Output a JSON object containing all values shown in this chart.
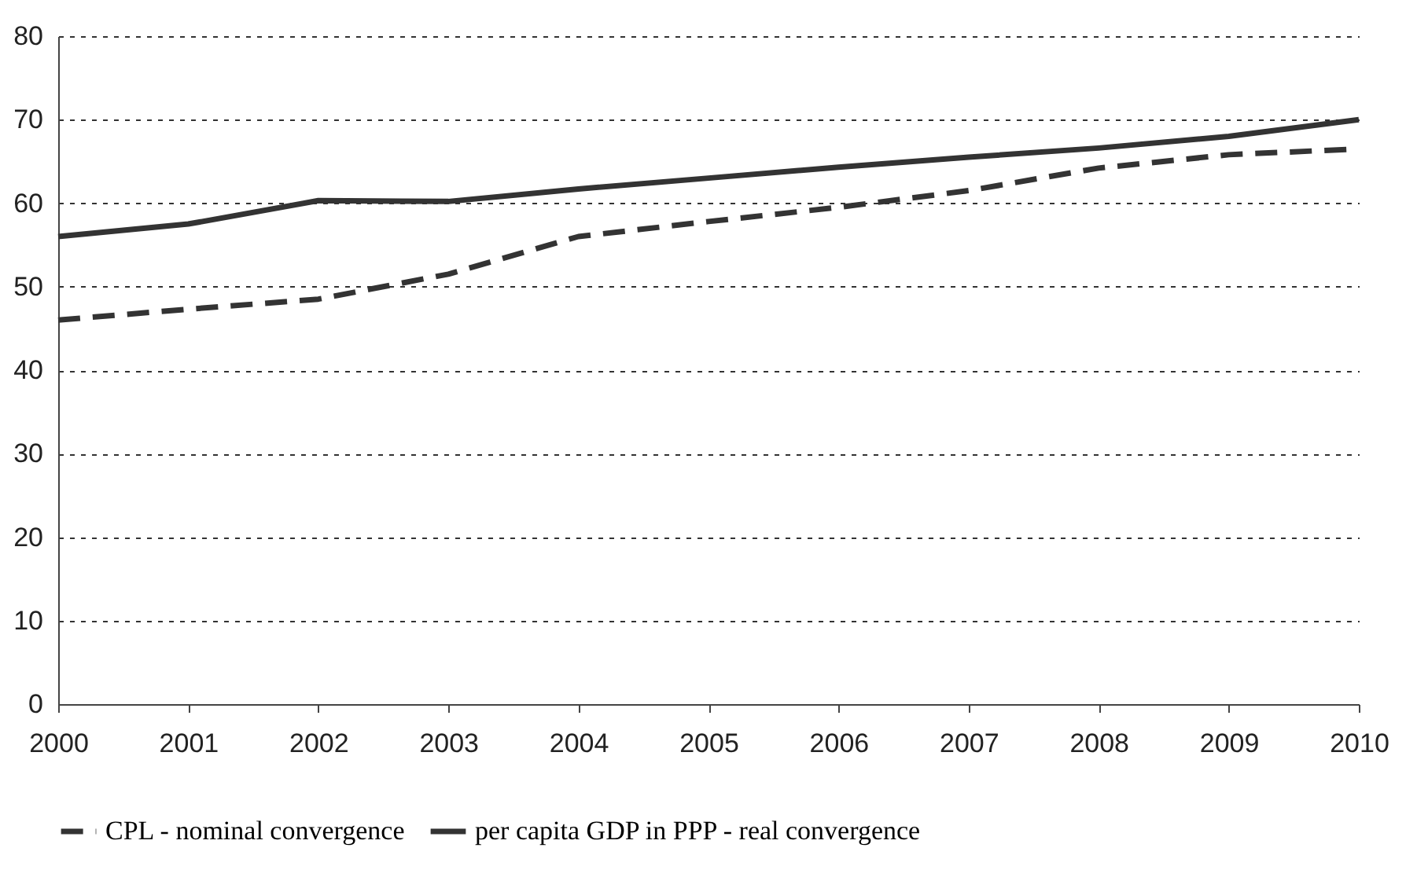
{
  "chart_data": {
    "type": "line",
    "x": [
      2000,
      2001,
      2002,
      2003,
      2004,
      2005,
      2006,
      2007,
      2008,
      2009,
      2010
    ],
    "series": [
      {
        "name": "CPL - nominal convergence",
        "color": "#333333",
        "line_style": "dashed",
        "values": [
          46,
          47.3,
          48.5,
          51.5,
          56,
          57.8,
          59.5,
          61.5,
          64.2,
          65.8,
          66.5
        ]
      },
      {
        "name": "per capita GDP in PPP - real convergence",
        "color": "#333333",
        "line_style": "solid",
        "values": [
          56,
          57.5,
          60.3,
          60.2,
          61.7,
          63,
          64.3,
          65.5,
          66.6,
          68,
          70
        ]
      }
    ],
    "xlim": [
      2000,
      2010
    ],
    "xticks": [
      2000,
      2001,
      2002,
      2003,
      2004,
      2005,
      2006,
      2007,
      2008,
      2009,
      2010
    ],
    "ylim": [
      0,
      80
    ],
    "yticks": [
      0,
      10,
      20,
      30,
      40,
      50,
      60,
      70,
      80
    ],
    "grid": "y",
    "legend": "bottom",
    "marker": "none"
  }
}
